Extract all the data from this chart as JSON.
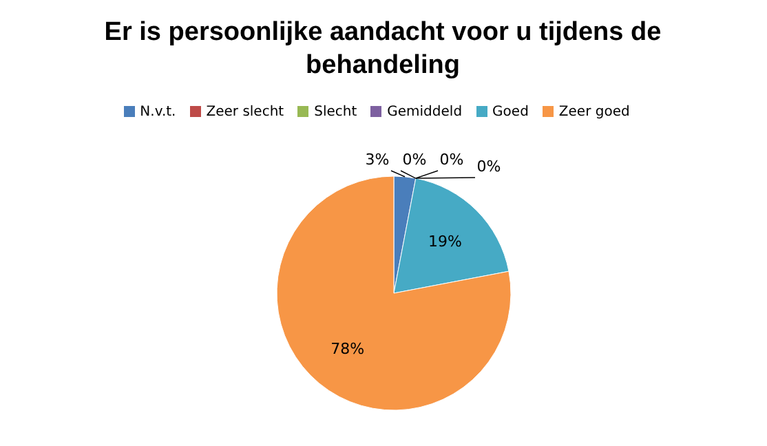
{
  "chart_data": {
    "type": "pie",
    "title": "Er is persoonlijke aandacht voor u tijdens de behandeling",
    "categories": [
      "N.v.t.",
      "Zeer slecht",
      "Slecht",
      "Gemiddeld",
      "Goed",
      "Zeer goed"
    ],
    "values": [
      3,
      0,
      0,
      0,
      19,
      78
    ],
    "colors": [
      "#4a7ebb",
      "#be4b48",
      "#98b954",
      "#7d60a0",
      "#46aac5",
      "#f79646"
    ],
    "value_labels": [
      "3%",
      "0%",
      "0%",
      "0%",
      "19%",
      "78%"
    ],
    "legend": "top"
  }
}
